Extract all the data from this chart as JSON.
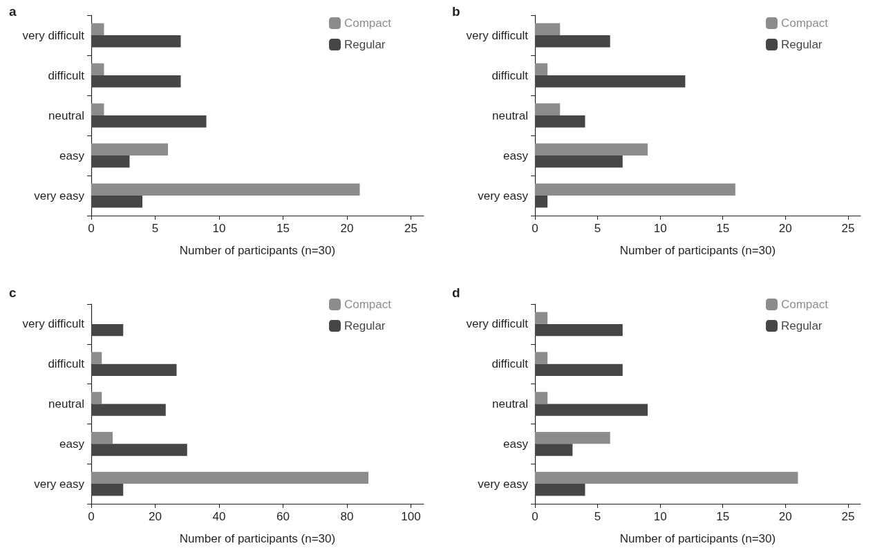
{
  "chart_data": [
    {
      "type": "bar",
      "title": "a",
      "orientation": "horizontal",
      "categories": [
        "very difficult",
        "difficult",
        "neutral",
        "easy",
        "very easy"
      ],
      "series": [
        {
          "name": "Compact",
          "color": "#8c8c8e",
          "values": [
            1,
            1,
            1,
            6,
            21
          ]
        },
        {
          "name": "Regular",
          "color": "#464648",
          "values": [
            7,
            7,
            9,
            3,
            4
          ]
        }
      ],
      "xlabel": "Number of participants (n=30)",
      "xlim": [
        0,
        26
      ],
      "xticks": [
        0,
        5,
        10,
        15,
        20,
        25
      ],
      "grid": false,
      "legend": "top right"
    },
    {
      "type": "bar",
      "title": "b",
      "orientation": "horizontal",
      "categories": [
        "very difficult",
        "difficult",
        "neutral",
        "easy",
        "very easy"
      ],
      "series": [
        {
          "name": "Compact",
          "color": "#8c8c8e",
          "values": [
            2,
            1,
            2,
            9,
            16
          ]
        },
        {
          "name": "Regular",
          "color": "#464648",
          "values": [
            6,
            12,
            4,
            7,
            1
          ]
        }
      ],
      "xlabel": "Number of participants (n=30)",
      "xlim": [
        0,
        26
      ],
      "xticks": [
        0,
        5,
        10,
        15,
        20,
        25
      ],
      "grid": false,
      "legend": "top right"
    },
    {
      "type": "bar",
      "title": "c",
      "orientation": "horizontal",
      "categories": [
        "very difficult",
        "difficult",
        "neutral",
        "easy",
        "very easy"
      ],
      "series": [
        {
          "name": "Compact",
          "color": "#8c8c8e",
          "values": [
            0,
            3.3,
            3.3,
            6.7,
            86.7
          ]
        },
        {
          "name": "Regular",
          "color": "#464648",
          "values": [
            10,
            26.7,
            23.3,
            30,
            10
          ]
        }
      ],
      "xlabel": "Number of participants (n=30)",
      "xlim": [
        0,
        104
      ],
      "xticks": [
        0,
        20,
        40,
        60,
        80,
        100
      ],
      "grid": false,
      "legend": "top right"
    },
    {
      "type": "bar",
      "title": "d",
      "orientation": "horizontal",
      "categories": [
        "very difficult",
        "difficult",
        "neutral",
        "easy",
        "very easy"
      ],
      "series": [
        {
          "name": "Compact",
          "color": "#8c8c8e",
          "values": [
            1,
            1,
            1,
            6,
            21
          ]
        },
        {
          "name": "Regular",
          "color": "#464648",
          "values": [
            7,
            7,
            9,
            3,
            4
          ]
        }
      ],
      "xlabel": "Number of participants (n=30)",
      "xlim": [
        0,
        26
      ],
      "xticks": [
        0,
        5,
        10,
        15,
        20,
        25
      ],
      "grid": false,
      "legend": "top right"
    }
  ]
}
